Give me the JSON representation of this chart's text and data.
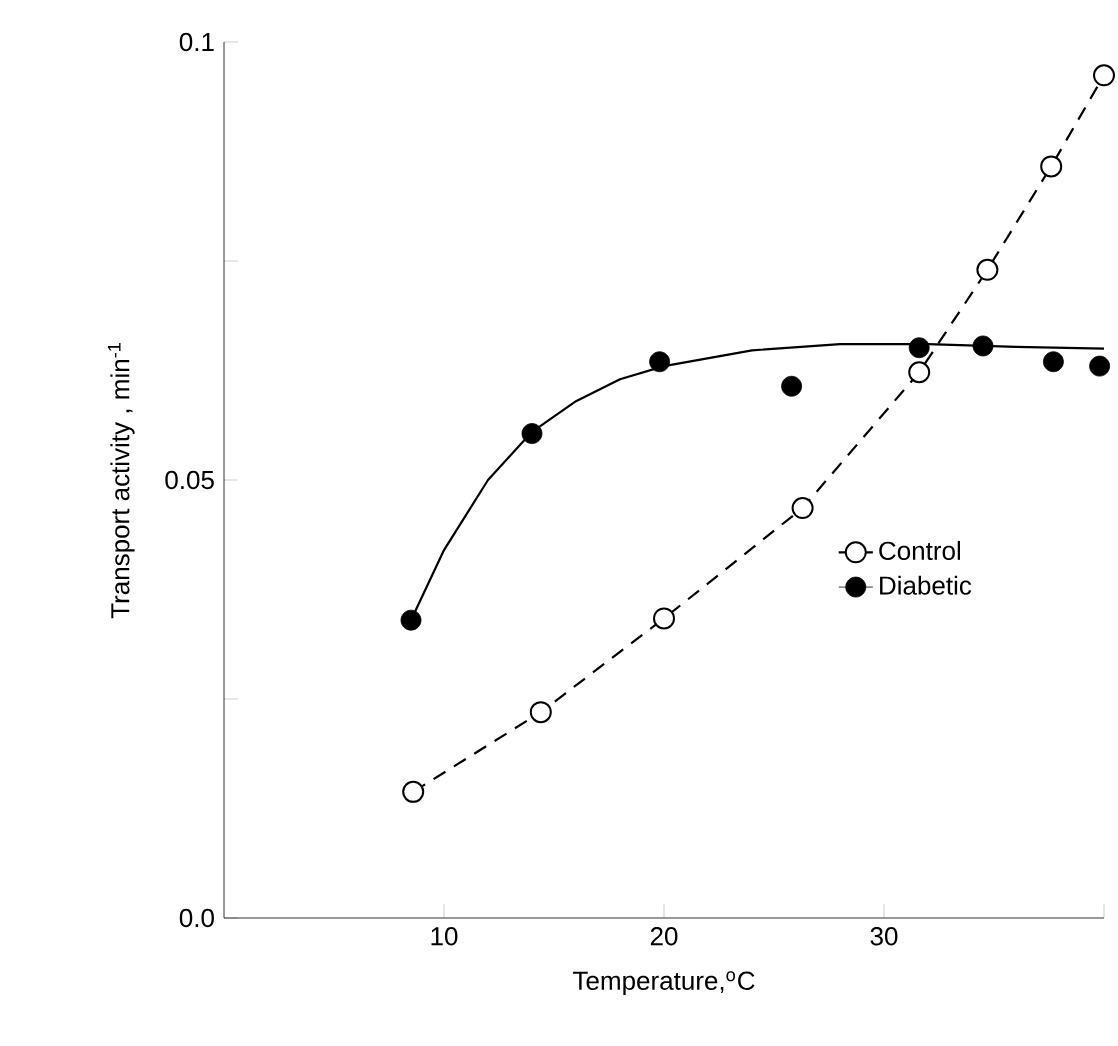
{
  "chart_data": {
    "type": "scatter",
    "xlabel": "Temperature,$^{o}$C",
    "ylabel": "Transport activity , min$^{-1}$",
    "xlim": [
      0,
      40
    ],
    "xticks": [
      10,
      20,
      30,
      {
        "value": 40,
        "label": null
      }
    ],
    "ylim": [
      0,
      0.1
    ],
    "yticks": [
      {
        "value": 0,
        "label": "0.0"
      },
      {
        "value": 0.025,
        "label": null
      },
      0.05,
      {
        "value": 0.075,
        "label": null
      },
      0.1
    ],
    "series": [
      {
        "name": "Control",
        "type": "line",
        "line_style": "dashed",
        "marker": "circle",
        "color": "#000000",
        "x": [
          8.6,
          14.4,
          20.0,
          26.3,
          31.6,
          34.7,
          37.6,
          40.0
        ],
        "values": [
          0.0144,
          0.0235,
          0.0342,
          0.0468,
          0.0623,
          0.074,
          0.0858,
          0.0962
        ]
      },
      {
        "name": "Diabetic",
        "marker": "circle",
        "color": "#000000",
        "x": [
          8.5,
          14.0,
          19.8,
          25.8,
          31.6,
          34.5,
          37.7,
          39.8
        ],
        "values": [
          0.034,
          0.0553,
          0.0635,
          0.0607,
          0.0651,
          0.0653,
          0.0635,
          0.063
        ]
      },
      {
        "type": "line",
        "line_style": "solid",
        "marker": "none",
        "color": "#000000",
        "x": [
          8.5,
          10,
          12,
          14,
          16,
          18,
          20,
          24,
          28,
          32,
          36,
          40
        ],
        "values": [
          0.034,
          0.042,
          0.05,
          0.0555,
          0.059,
          0.0615,
          0.063,
          0.0648,
          0.0655,
          0.0655,
          0.0652,
          0.065
        ]
      }
    ],
    "grid": false,
    "legend": "right"
  }
}
